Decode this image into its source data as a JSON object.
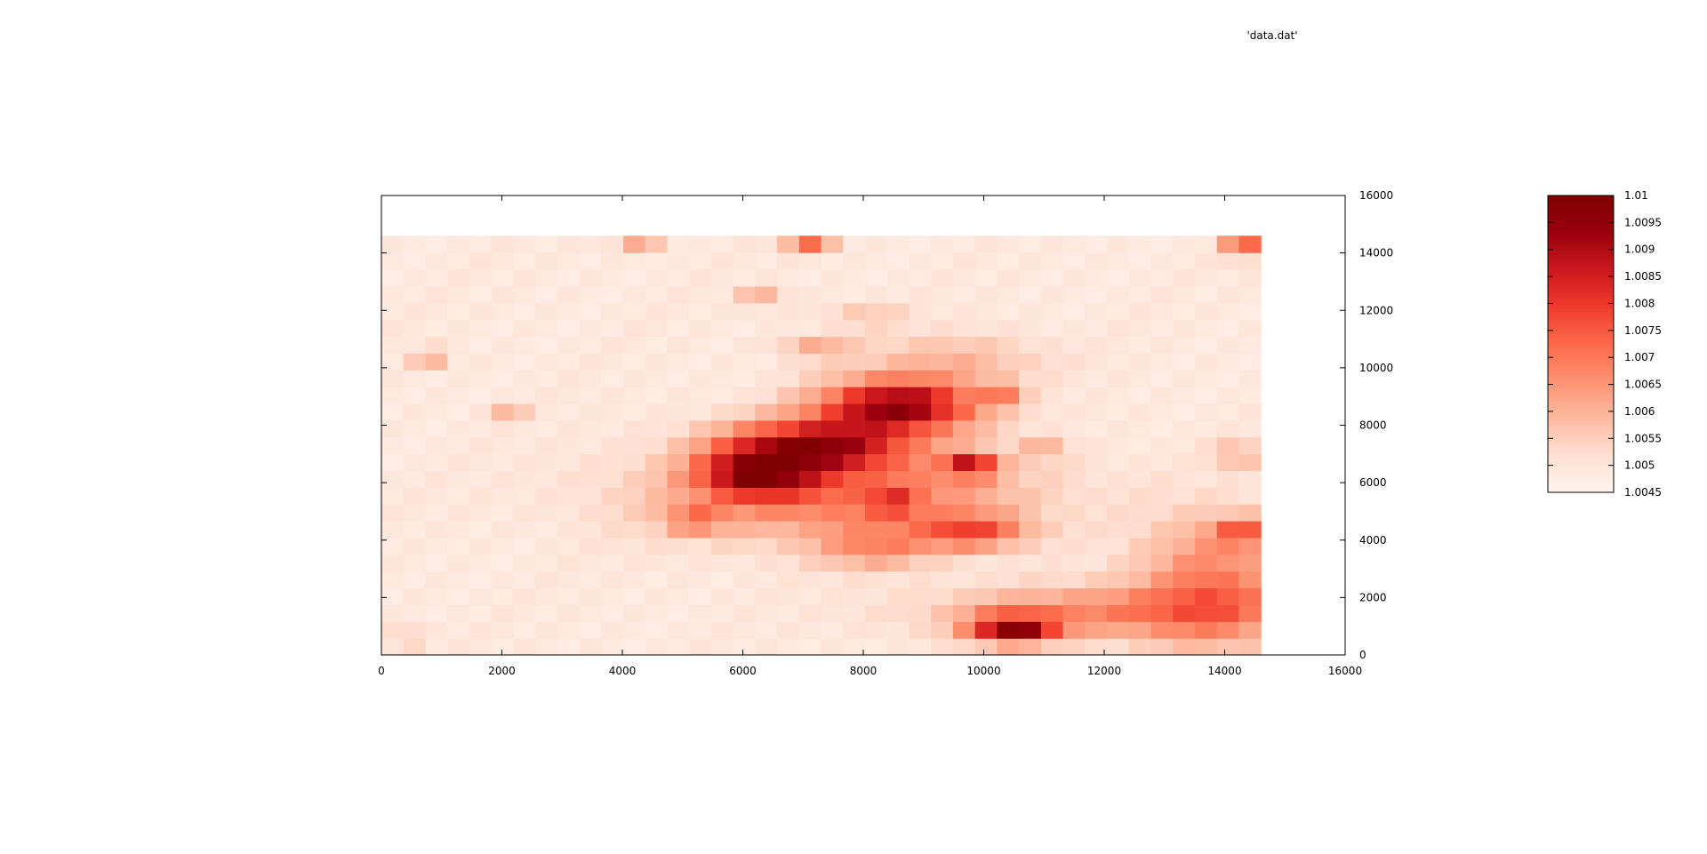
{
  "legend_key": "'data.dat'",
  "chart_data": {
    "type": "heatmap",
    "title": "",
    "xlabel": "",
    "ylabel": "",
    "xlim": [
      0,
      16000
    ],
    "ylim": [
      0,
      16000
    ],
    "x_ticks": [
      "0",
      "2000",
      "4000",
      "6000",
      "8000",
      "10000",
      "12000",
      "14000",
      "16000"
    ],
    "y_ticks": [
      "0",
      "2000",
      "4000",
      "6000",
      "8000",
      "10000",
      "12000",
      "14000",
      "16000"
    ],
    "y_axis_side": "right",
    "legend_entry": "'data.dat'",
    "legend_placement": "top-right",
    "grid": false,
    "data_extent": {
      "x": [
        0,
        14600
      ],
      "y": [
        0,
        14600
      ]
    },
    "grid_size": [
      40,
      25
    ],
    "colorbar": {
      "min": 1.0045,
      "max": 1.01,
      "tick_labels": [
        "1.01",
        "1.0095",
        "1.009",
        "1.0085",
        "1.008",
        "1.0075",
        "1.007",
        "1.0065",
        "1.006",
        "1.0055",
        "1.005",
        "1.0045"
      ],
      "colors": [
        "#fff5f0",
        "#fee0d2",
        "#fcbba1",
        "#fc9272",
        "#fb6a4a",
        "#ef3b2c",
        "#cb181d",
        "#99000d",
        "#7f0000"
      ]
    },
    "value_base": 1.0049,
    "hotspots": [
      {
        "x": 8600,
        "y": 8700,
        "sx": 1300,
        "sy": 900,
        "v": 0.0046
      },
      {
        "x": 7200,
        "y": 7300,
        "sx": 1500,
        "sy": 900,
        "v": 0.004
      },
      {
        "x": 6200,
        "y": 6300,
        "sx": 900,
        "sy": 800,
        "v": 0.0034
      },
      {
        "x": 7600,
        "y": 5600,
        "sx": 3000,
        "sy": 1600,
        "v": 0.0022
      },
      {
        "x": 9800,
        "y": 6600,
        "sx": 400,
        "sy": 400,
        "v": 0.0034
      },
      {
        "x": 10500,
        "y": 900,
        "sx": 700,
        "sy": 500,
        "v": 0.0042
      },
      {
        "x": 12000,
        "y": 1500,
        "sx": 2800,
        "sy": 900,
        "v": 0.0018
      },
      {
        "x": 13800,
        "y": 2500,
        "sx": 1200,
        "sy": 2200,
        "v": 0.002
      },
      {
        "x": 9800,
        "y": 4300,
        "sx": 900,
        "sy": 600,
        "v": 0.0024
      },
      {
        "x": 8500,
        "y": 5300,
        "sx": 400,
        "sy": 400,
        "v": 0.0018
      },
      {
        "x": 5200,
        "y": 4700,
        "sx": 500,
        "sy": 400,
        "v": 0.0018
      },
      {
        "x": 14300,
        "y": 14400,
        "sx": 300,
        "sy": 500,
        "v": 0.0028
      },
      {
        "x": 7100,
        "y": 14300,
        "sx": 400,
        "sy": 300,
        "v": 0.0022
      },
      {
        "x": 14300,
        "y": 4300,
        "sx": 500,
        "sy": 500,
        "v": 0.002
      },
      {
        "x": 14200,
        "y": 7000,
        "sx": 400,
        "sy": 400,
        "v": 0.0014
      },
      {
        "x": 800,
        "y": 10400,
        "sx": 300,
        "sy": 300,
        "v": 0.0016
      },
      {
        "x": 2100,
        "y": 8400,
        "sx": 300,
        "sy": 300,
        "v": 0.0012
      },
      {
        "x": 6300,
        "y": 12400,
        "sx": 400,
        "sy": 300,
        "v": 0.0014
      },
      {
        "x": 4300,
        "y": 14300,
        "sx": 400,
        "sy": 300,
        "v": 0.0012
      },
      {
        "x": 10300,
        "y": 9200,
        "sx": 300,
        "sy": 300,
        "v": 0.002
      },
      {
        "x": 11000,
        "y": 7100,
        "sx": 400,
        "sy": 300,
        "v": 0.0014
      },
      {
        "x": 7200,
        "y": 10700,
        "sx": 600,
        "sy": 400,
        "v": 0.0012
      },
      {
        "x": 8000,
        "y": 11800,
        "sx": 700,
        "sy": 400,
        "v": 0.0008
      },
      {
        "x": 400,
        "y": 600,
        "sx": 300,
        "sy": 300,
        "v": 0.0014
      },
      {
        "x": 8200,
        "y": 3700,
        "sx": 900,
        "sy": 700,
        "v": 0.0014
      },
      {
        "x": 9500,
        "y": 10300,
        "sx": 1500,
        "sy": 900,
        "v": 0.001
      }
    ]
  }
}
